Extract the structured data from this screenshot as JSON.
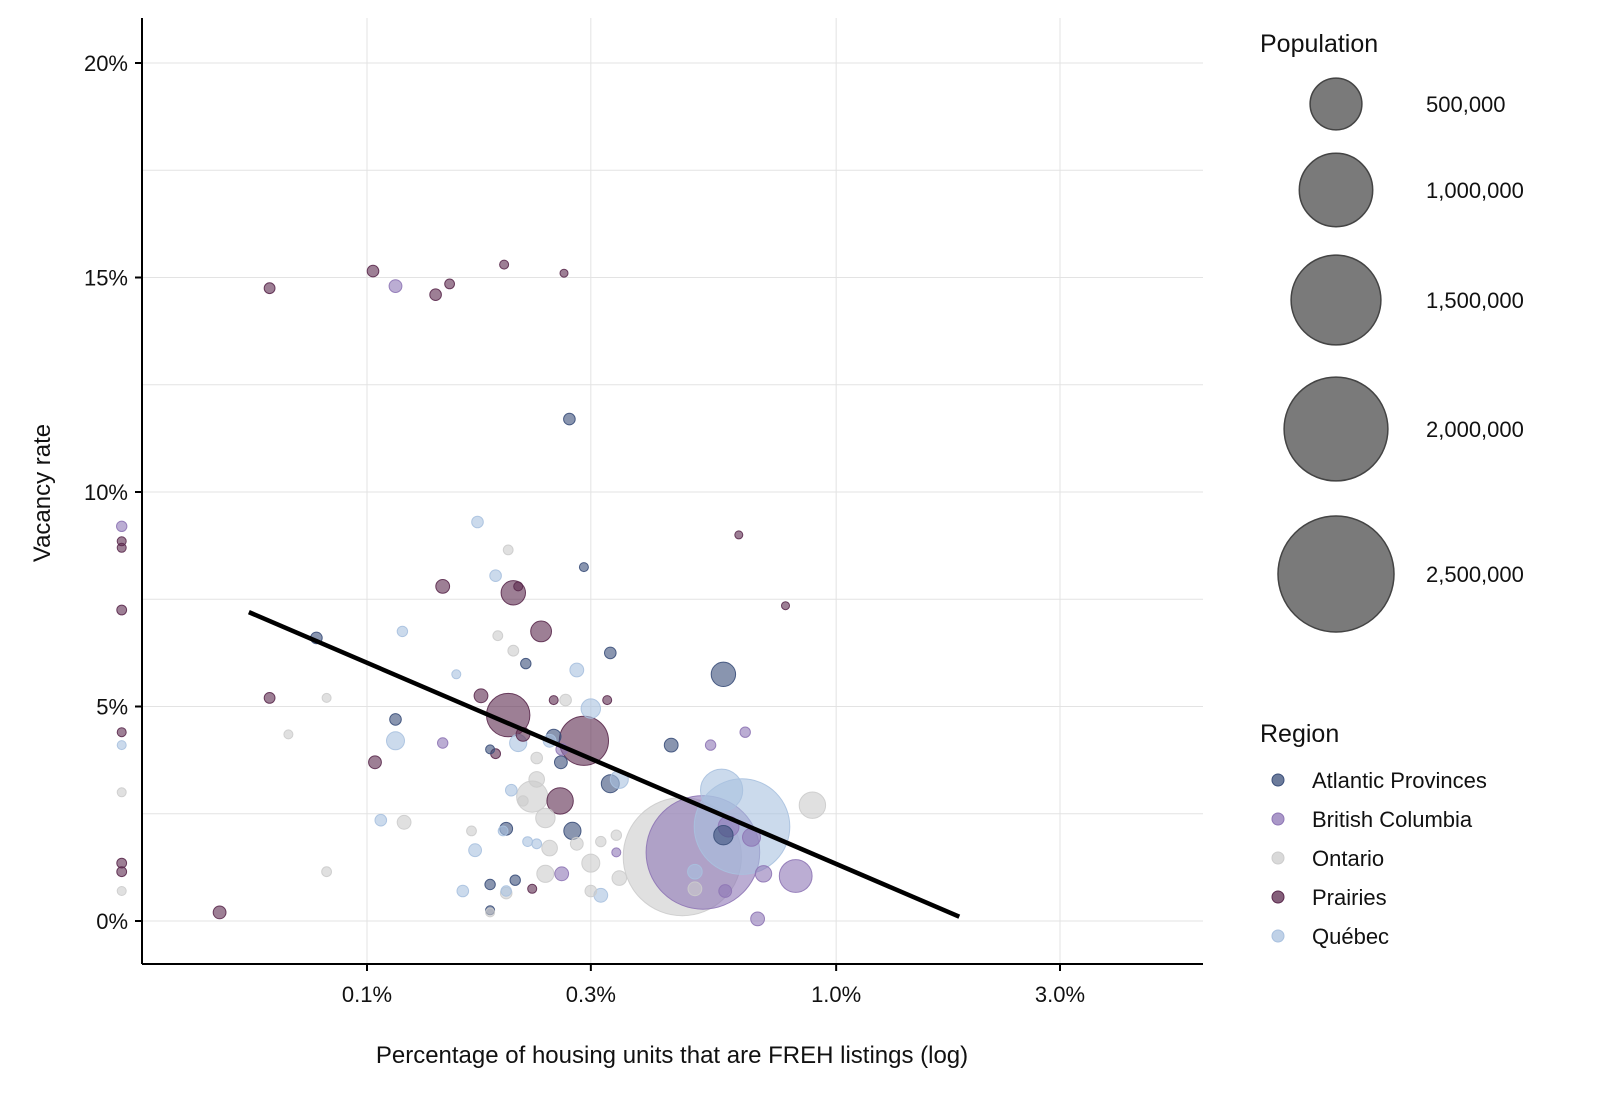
{
  "chart_data": {
    "type": "scatter",
    "title": "",
    "xlabel": "Percentage of housing units that are FREH listings (log)",
    "ylabel": "Vacancy rate",
    "x_scale": "log",
    "x_unit": "percent",
    "xlim": [
      0.03,
      5.0
    ],
    "ylim": [
      -1,
      21
    ],
    "x_ticks": [
      {
        "value": 0.1,
        "label": "0.1%"
      },
      {
        "value": 0.3,
        "label": "0.3%"
      },
      {
        "value": 1.0,
        "label": "1.0%"
      },
      {
        "value": 3.0,
        "label": "3.0%"
      }
    ],
    "y_ticks": [
      {
        "value": 0,
        "label": "0%"
      },
      {
        "value": 5,
        "label": "5%"
      },
      {
        "value": 10,
        "label": "10%"
      },
      {
        "value": 15,
        "label": "15%"
      },
      {
        "value": 20,
        "label": "20%"
      }
    ],
    "grid": true,
    "point_opacity": 0.6,
    "trend_line": {
      "x": [
        0.056,
        1.83
      ],
      "y": [
        7.2,
        0.1
      ],
      "color": "#000000"
    },
    "size_legend": {
      "title": "Population",
      "entries": [
        {
          "value": 500000,
          "label": "500,000"
        },
        {
          "value": 1000000,
          "label": "1,000,000"
        },
        {
          "value": 1500000,
          "label": "1,500,000"
        },
        {
          "value": 2000000,
          "label": "2,000,000"
        },
        {
          "value": 2500000,
          "label": "2,500,000"
        }
      ]
    },
    "color_legend": {
      "title": "Region",
      "placement": "right",
      "entries": [
        {
          "name": "Atlantic Provinces",
          "color": "#3b4f7a"
        },
        {
          "name": "British Columbia",
          "color": "#8e76b5"
        },
        {
          "name": "Ontario",
          "color": "#cccccc"
        },
        {
          "name": "Prairies",
          "color": "#5b2a4e"
        },
        {
          "name": "Québec",
          "color": "#a9c1df"
        }
      ]
    },
    "series": [
      {
        "name": "Atlantic Provinces",
        "points": [
          {
            "x": 0.078,
            "y": 6.6,
            "pop": 25000
          },
          {
            "x": 0.115,
            "y": 4.7,
            "pop": 25000
          },
          {
            "x": 0.183,
            "y": 4.0,
            "pop": 15000
          },
          {
            "x": 0.183,
            "y": 0.85,
            "pop": 20000
          },
          {
            "x": 0.183,
            "y": 0.25,
            "pop": 15000
          },
          {
            "x": 0.198,
            "y": 2.15,
            "pop": 30000
          },
          {
            "x": 0.207,
            "y": 0.95,
            "pop": 20000
          },
          {
            "x": 0.218,
            "y": 6.0,
            "pop": 20000
          },
          {
            "x": 0.25,
            "y": 4.3,
            "pop": 40000
          },
          {
            "x": 0.259,
            "y": 3.7,
            "pop": 30000
          },
          {
            "x": 0.27,
            "y": 11.7,
            "pop": 25000
          },
          {
            "x": 0.274,
            "y": 2.1,
            "pop": 55000
          },
          {
            "x": 0.29,
            "y": 8.25,
            "pop": 15000
          },
          {
            "x": 0.33,
            "y": 6.25,
            "pop": 25000
          },
          {
            "x": 0.33,
            "y": 3.2,
            "pop": 60000
          },
          {
            "x": 0.445,
            "y": 4.1,
            "pop": 35000
          },
          {
            "x": 0.575,
            "y": 5.75,
            "pop": 110000
          },
          {
            "x": 0.575,
            "y": 2.0,
            "pop": 70000
          }
        ]
      },
      {
        "name": "British Columbia",
        "points": [
          {
            "x": 0.03,
            "y": 9.2,
            "pop": 20000
          },
          {
            "x": 0.115,
            "y": 14.8,
            "pop": 30000
          },
          {
            "x": 0.145,
            "y": 4.15,
            "pop": 20000
          },
          {
            "x": 0.26,
            "y": 4.0,
            "pop": 25000
          },
          {
            "x": 0.26,
            "y": 1.1,
            "pop": 35000
          },
          {
            "x": 0.34,
            "y": 1.6,
            "pop": 15000
          },
          {
            "x": 0.54,
            "y": 4.1,
            "pop": 20000
          },
          {
            "x": 0.64,
            "y": 4.4,
            "pop": 20000
          },
          {
            "x": 0.52,
            "y": 1.6,
            "pop": 2400000
          },
          {
            "x": 0.59,
            "y": 2.2,
            "pop": 80000
          },
          {
            "x": 0.66,
            "y": 1.95,
            "pop": 60000
          },
          {
            "x": 0.7,
            "y": 1.1,
            "pop": 50000
          },
          {
            "x": 0.82,
            "y": 1.05,
            "pop": 200000
          },
          {
            "x": 0.68,
            "y": 0.05,
            "pop": 35000
          },
          {
            "x": 0.58,
            "y": 0.7,
            "pop": 30000
          }
        ]
      },
      {
        "name": "Ontario",
        "points": [
          {
            "x": 0.03,
            "y": 3.0,
            "pop": 15000
          },
          {
            "x": 0.03,
            "y": 0.7,
            "pop": 15000
          },
          {
            "x": 0.068,
            "y": 4.35,
            "pop": 15000
          },
          {
            "x": 0.082,
            "y": 5.2,
            "pop": 15000
          },
          {
            "x": 0.082,
            "y": 1.15,
            "pop": 18000
          },
          {
            "x": 0.12,
            "y": 2.3,
            "pop": 35000
          },
          {
            "x": 0.167,
            "y": 2.1,
            "pop": 18000
          },
          {
            "x": 0.19,
            "y": 6.65,
            "pop": 18000
          },
          {
            "x": 0.2,
            "y": 8.65,
            "pop": 18000
          },
          {
            "x": 0.205,
            "y": 6.3,
            "pop": 22000
          },
          {
            "x": 0.183,
            "y": 0.2,
            "pop": 15000
          },
          {
            "x": 0.198,
            "y": 0.65,
            "pop": 25000
          },
          {
            "x": 0.23,
            "y": 3.8,
            "pop": 25000
          },
          {
            "x": 0.23,
            "y": 3.3,
            "pop": 45000
          },
          {
            "x": 0.215,
            "y": 2.8,
            "pop": 20000
          },
          {
            "x": 0.225,
            "y": 2.9,
            "pop": 180000
          },
          {
            "x": 0.24,
            "y": 2.4,
            "pop": 70000
          },
          {
            "x": 0.245,
            "y": 1.7,
            "pop": 45000
          },
          {
            "x": 0.24,
            "y": 1.1,
            "pop": 55000
          },
          {
            "x": 0.265,
            "y": 5.15,
            "pop": 25000
          },
          {
            "x": 0.28,
            "y": 1.8,
            "pop": 30000
          },
          {
            "x": 0.3,
            "y": 1.35,
            "pop": 60000
          },
          {
            "x": 0.3,
            "y": 0.7,
            "pop": 25000
          },
          {
            "x": 0.315,
            "y": 1.85,
            "pop": 20000
          },
          {
            "x": 0.345,
            "y": 1.0,
            "pop": 40000
          },
          {
            "x": 0.34,
            "y": 2.0,
            "pop": 20000
          },
          {
            "x": 0.47,
            "y": 1.5,
            "pop": 2600000
          },
          {
            "x": 0.5,
            "y": 0.75,
            "pop": 35000
          },
          {
            "x": 0.89,
            "y": 2.7,
            "pop": 130000
          }
        ]
      },
      {
        "name": "Prairies",
        "points": [
          {
            "x": 0.03,
            "y": 8.85,
            "pop": 15000
          },
          {
            "x": 0.03,
            "y": 8.7,
            "pop": 15000
          },
          {
            "x": 0.03,
            "y": 7.25,
            "pop": 18000
          },
          {
            "x": 0.03,
            "y": 4.4,
            "pop": 15000
          },
          {
            "x": 0.03,
            "y": 1.35,
            "pop": 18000
          },
          {
            "x": 0.03,
            "y": 1.15,
            "pop": 18000
          },
          {
            "x": 0.0485,
            "y": 0.2,
            "pop": 30000
          },
          {
            "x": 0.062,
            "y": 14.75,
            "pop": 22000
          },
          {
            "x": 0.062,
            "y": 5.2,
            "pop": 22000
          },
          {
            "x": 0.103,
            "y": 15.15,
            "pop": 25000
          },
          {
            "x": 0.104,
            "y": 3.7,
            "pop": 30000
          },
          {
            "x": 0.14,
            "y": 14.6,
            "pop": 25000
          },
          {
            "x": 0.15,
            "y": 14.85,
            "pop": 18000
          },
          {
            "x": 0.145,
            "y": 7.8,
            "pop": 35000
          },
          {
            "x": 0.175,
            "y": 5.25,
            "pop": 35000
          },
          {
            "x": 0.188,
            "y": 3.9,
            "pop": 18000
          },
          {
            "x": 0.196,
            "y": 15.3,
            "pop": 15000
          },
          {
            "x": 0.2,
            "y": 4.8,
            "pop": 350000
          },
          {
            "x": 0.205,
            "y": 7.65,
            "pop": 110000
          },
          {
            "x": 0.21,
            "y": 7.8,
            "pop": 15000
          },
          {
            "x": 0.215,
            "y": 4.35,
            "pop": 35000
          },
          {
            "x": 0.235,
            "y": 6.75,
            "pop": 80000
          },
          {
            "x": 0.25,
            "y": 5.15,
            "pop": 15000
          },
          {
            "x": 0.263,
            "y": 15.1,
            "pop": 12000
          },
          {
            "x": 0.258,
            "y": 2.8,
            "pop": 130000
          },
          {
            "x": 0.29,
            "y": 4.2,
            "pop": 450000
          },
          {
            "x": 0.325,
            "y": 5.15,
            "pop": 15000
          },
          {
            "x": 0.225,
            "y": 0.75,
            "pop": 15000
          },
          {
            "x": 0.62,
            "y": 9.0,
            "pop": 12000
          },
          {
            "x": 0.78,
            "y": 7.35,
            "pop": 10000
          }
        ]
      },
      {
        "name": "Québec",
        "points": [
          {
            "x": 0.03,
            "y": 4.1,
            "pop": 15000
          },
          {
            "x": 0.115,
            "y": 4.2,
            "pop": 60000
          },
          {
            "x": 0.119,
            "y": 6.75,
            "pop": 20000
          },
          {
            "x": 0.107,
            "y": 2.35,
            "pop": 25000
          },
          {
            "x": 0.155,
            "y": 5.75,
            "pop": 15000
          },
          {
            "x": 0.16,
            "y": 0.7,
            "pop": 25000
          },
          {
            "x": 0.17,
            "y": 1.65,
            "pop": 30000
          },
          {
            "x": 0.172,
            "y": 9.3,
            "pop": 25000
          },
          {
            "x": 0.188,
            "y": 8.05,
            "pop": 25000
          },
          {
            "x": 0.195,
            "y": 2.1,
            "pop": 18000
          },
          {
            "x": 0.198,
            "y": 0.7,
            "pop": 20000
          },
          {
            "x": 0.203,
            "y": 3.05,
            "pop": 25000
          },
          {
            "x": 0.21,
            "y": 4.15,
            "pop": 55000
          },
          {
            "x": 0.22,
            "y": 1.85,
            "pop": 18000
          },
          {
            "x": 0.23,
            "y": 1.8,
            "pop": 18000
          },
          {
            "x": 0.245,
            "y": 4.2,
            "pop": 30000
          },
          {
            "x": 0.28,
            "y": 5.85,
            "pop": 35000
          },
          {
            "x": 0.3,
            "y": 4.95,
            "pop": 70000
          },
          {
            "x": 0.345,
            "y": 3.3,
            "pop": 60000
          },
          {
            "x": 0.315,
            "y": 0.6,
            "pop": 35000
          },
          {
            "x": 0.5,
            "y": 1.15,
            "pop": 40000
          },
          {
            "x": 0.57,
            "y": 3.05,
            "pop": 330000
          },
          {
            "x": 0.63,
            "y": 2.2,
            "pop": 1700000
          }
        ]
      }
    ]
  }
}
